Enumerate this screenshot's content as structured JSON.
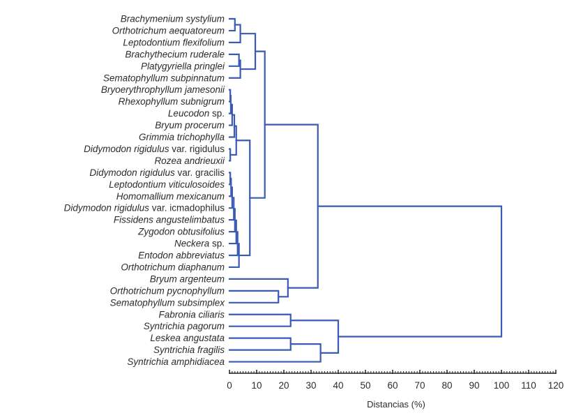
{
  "chart_data": {
    "type": "dendrogram",
    "xlabel": "Distancias (%)",
    "xlim": [
      0,
      120
    ],
    "xticks": [
      0,
      10,
      20,
      30,
      40,
      50,
      60,
      70,
      80,
      90,
      100,
      110,
      120
    ],
    "grid": false,
    "legend": "none",
    "link_color": "#3a5ab4",
    "leaves": [
      {
        "italic": "Brachymenium systylium",
        "suffix": ""
      },
      {
        "italic": "Orthotrichum aequatoreum",
        "suffix": ""
      },
      {
        "italic": "Leptodontium flexifolium",
        "suffix": ""
      },
      {
        "italic": "Brachythecium ruderale",
        "suffix": ""
      },
      {
        "italic": "Platygyriella pringlei",
        "suffix": ""
      },
      {
        "italic": "Sematophyllum subpinnatum",
        "suffix": ""
      },
      {
        "italic": "Bryoerythrophyllum jamesonii",
        "suffix": ""
      },
      {
        "italic": "Rhexophyllum subnigrum",
        "suffix": ""
      },
      {
        "italic": "Leucodon",
        "suffix": " sp."
      },
      {
        "italic": "Bryum procerum",
        "suffix": ""
      },
      {
        "italic": "Grimmia trichophylla",
        "suffix": ""
      },
      {
        "italic": "Didymodon rigidulus",
        "suffix": " var. rigidulus"
      },
      {
        "italic": "Rozea andrieuxii",
        "suffix": ""
      },
      {
        "italic": "Didymodon rigidulus",
        "suffix": " var. gracilis"
      },
      {
        "italic": "Leptodontium viticulosoides",
        "suffix": ""
      },
      {
        "italic": "Homomallium mexicanum",
        "suffix": ""
      },
      {
        "italic": "Didymodon rigidulus",
        "suffix": " var. icmadophilus"
      },
      {
        "italic": "Fissidens angustelimbatus",
        "suffix": ""
      },
      {
        "italic": "Zygodon obtusifolius",
        "suffix": ""
      },
      {
        "italic": "Neckera",
        "suffix": " sp."
      },
      {
        "italic": "Entodon abbreviatus",
        "suffix": ""
      },
      {
        "italic": "Orthotrichum diaphanum",
        "suffix": ""
      },
      {
        "italic": "Bryum argenteum",
        "suffix": ""
      },
      {
        "italic": "Orthotrichum pycnophyllum",
        "suffix": ""
      },
      {
        "italic": "Sematophyllum subsimplex",
        "suffix": ""
      },
      {
        "italic": "Fabronia ciliaris",
        "suffix": ""
      },
      {
        "italic": "Syntrichia pagorum",
        "suffix": ""
      },
      {
        "italic": "Leskea angustata",
        "suffix": ""
      },
      {
        "italic": "Syntrichia fragilis",
        "suffix": ""
      },
      {
        "italic": "Syntrichia amphidiacea",
        "suffix": ""
      }
    ],
    "merges": [
      {
        "id": "A",
        "a": 0,
        "b": 1,
        "distance": 2
      },
      {
        "id": "B",
        "a": "A",
        "b": 2,
        "distance": 4
      },
      {
        "id": "C",
        "a": 3,
        "b": 4,
        "distance": 3.5
      },
      {
        "id": "D",
        "a": "C",
        "b": 5,
        "distance": 4
      },
      {
        "id": "E",
        "a": "B",
        "b": "D",
        "distance": 9.5
      },
      {
        "id": "F",
        "a": 6,
        "b": 7,
        "distance": 0.3
      },
      {
        "id": "G",
        "a": "F",
        "b": 8,
        "distance": 0.5
      },
      {
        "id": "H",
        "a": "G",
        "b": 9,
        "distance": 1
      },
      {
        "id": "I",
        "a": "H",
        "b": 10,
        "distance": 1.8
      },
      {
        "id": "J",
        "a": 11,
        "b": 12,
        "distance": 0.3
      },
      {
        "id": "K",
        "a": "I",
        "b": "J",
        "distance": 2.5
      },
      {
        "id": "L",
        "a": 13,
        "b": 14,
        "distance": 0.3
      },
      {
        "id": "M",
        "a": "L",
        "b": 15,
        "distance": 0.6
      },
      {
        "id": "N",
        "a": "M",
        "b": 16,
        "distance": 1
      },
      {
        "id": "O",
        "a": "N",
        "b": 17,
        "distance": 1.6
      },
      {
        "id": "P",
        "a": "O",
        "b": 18,
        "distance": 2
      },
      {
        "id": "Q",
        "a": "P",
        "b": 19,
        "distance": 2.5
      },
      {
        "id": "R",
        "a": "Q",
        "b": 20,
        "distance": 3
      },
      {
        "id": "S",
        "a": "R",
        "b": 21,
        "distance": 3.5
      },
      {
        "id": "T",
        "a": "K",
        "b": "S",
        "distance": 7.5
      },
      {
        "id": "U",
        "a": "E",
        "b": "T",
        "distance": 13
      },
      {
        "id": "V",
        "a": 23,
        "b": 24,
        "distance": 18
      },
      {
        "id": "W",
        "a": 22,
        "b": "V",
        "distance": 21.5
      },
      {
        "id": "X",
        "a": "U",
        "b": "W",
        "distance": 32.5
      },
      {
        "id": "Y",
        "a": 25,
        "b": 26,
        "distance": 22.5
      },
      {
        "id": "Z",
        "a": 27,
        "b": 28,
        "distance": 22.5
      },
      {
        "id": "AA",
        "a": "Z",
        "b": 29,
        "distance": 33.5
      },
      {
        "id": "AB",
        "a": "Y",
        "b": "AA",
        "distance": 40
      },
      {
        "id": "AC",
        "a": "X",
        "b": "AB",
        "distance": 100
      }
    ]
  }
}
